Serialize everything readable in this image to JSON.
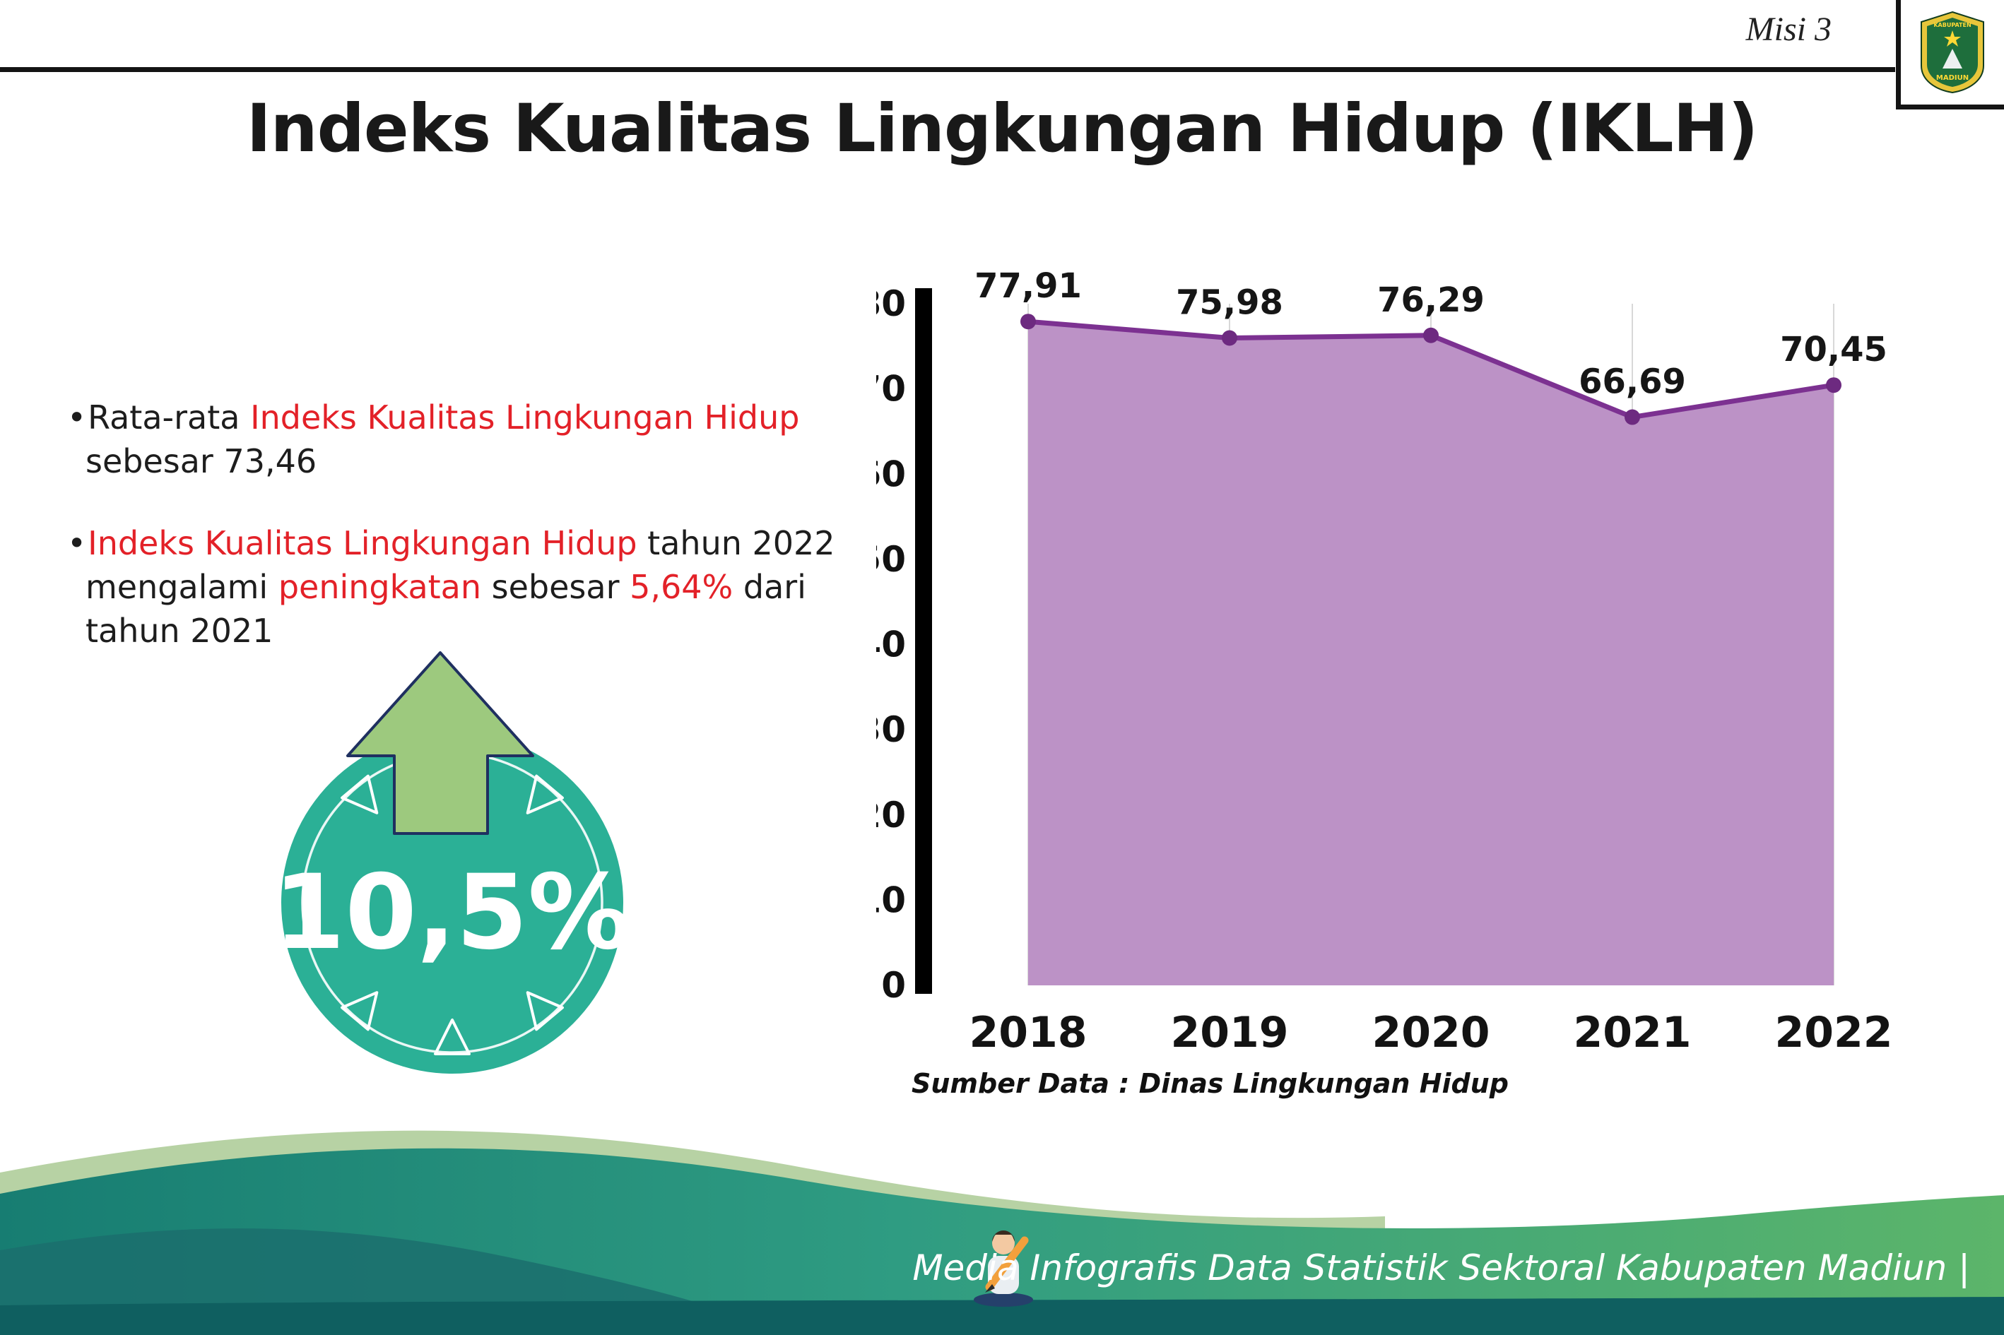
{
  "header": {
    "misi": "Misi 3",
    "title": "Indeks Kualitas Lingkungan Hidup (IKLH)"
  },
  "logo": {
    "top": "KABUPATEN",
    "bottom": "MADIUN"
  },
  "bullets": [
    {
      "lines": [
        [
          {
            "t": "Rata-rata ",
            "c": "dark"
          },
          {
            "t": "Indeks Kualitas Lingkungan Hidup",
            "c": "red"
          }
        ],
        [
          {
            "t": "sebesar 73,46",
            "c": "dark"
          }
        ]
      ]
    },
    {
      "lines": [
        [
          {
            "t": "Indeks Kualitas Lingkungan Hidup",
            "c": "red"
          },
          {
            "t": " tahun 2022",
            "c": "dark"
          }
        ],
        [
          {
            "t": "mengalami ",
            "c": "dark"
          },
          {
            "t": "peningkatan",
            "c": "red"
          },
          {
            "t": " sebesar ",
            "c": "dark"
          },
          {
            "t": "5,64%",
            "c": "red"
          },
          {
            "t": " dari",
            "c": "dark"
          }
        ],
        [
          {
            "t": "tahun 2021",
            "c": "dark"
          }
        ]
      ]
    }
  ],
  "badge": {
    "value": "10,5%",
    "circle_color": "#2bb096",
    "arrow_color": "#9dc97e"
  },
  "chart_data": {
    "type": "area",
    "title": "",
    "xlabel": "",
    "ylabel": "",
    "categories": [
      "2018",
      "2019",
      "2020",
      "2021",
      "2022"
    ],
    "values": [
      77.91,
      75.98,
      76.29,
      66.69,
      70.45
    ],
    "value_labels": [
      "77,91",
      "75,98",
      "76,29",
      "66,69",
      "70,45"
    ],
    "ylim": [
      0,
      80
    ],
    "ytick_step": 10,
    "grid": "vertical",
    "legend": "none",
    "fill_color": "#bc92c6",
    "line_color": "#7c3191",
    "point_color": "#6d2a80"
  },
  "source": "Sumber Data : Dinas Lingkungan Hidup",
  "footer": {
    "text": "Media Infografis Data Statistik Sektoral Kabupaten Madiun |"
  }
}
